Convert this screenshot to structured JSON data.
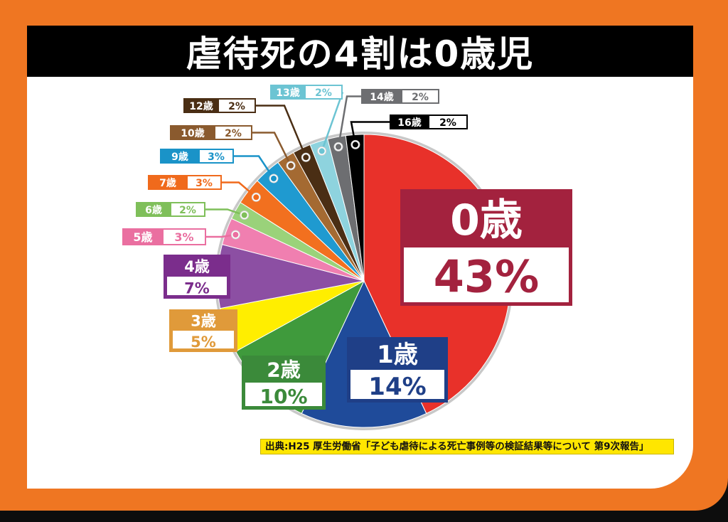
{
  "title": "虐待死の4割は0歳児",
  "source": "出典:H25 厚生労働省「子ども虐待による死亡事例等の検証結果等について 第9次報告」",
  "chart_data": {
    "type": "pie",
    "title": "虐待死の4割は0歳児",
    "start": "12 o'clock",
    "direction": "clockwise",
    "slices": [
      {
        "label": "0歳",
        "value": 43,
        "value_label": "43%",
        "color": "#e8312a",
        "label_color": "#a3223e"
      },
      {
        "label": "1歳",
        "value": 14,
        "value_label": "14%",
        "color": "#1f4b9a",
        "label_color": "#1f3f87"
      },
      {
        "label": "2歳",
        "value": 10,
        "value_label": "10%",
        "color": "#3f9a3c",
        "label_color": "#3b8a3a"
      },
      {
        "label": "3歳",
        "value": 5,
        "value_label": "5%",
        "color": "#ffee00",
        "label_color": "#e09a3a"
      },
      {
        "label": "4歳",
        "value": 7,
        "value_label": "7%",
        "color": "#8c4fa3",
        "label_color": "#7b2d8c"
      },
      {
        "label": "5歳",
        "value": 3,
        "value_label": "3%",
        "color": "#f07fb0",
        "label_color": "#ea6fa0"
      },
      {
        "label": "6歳",
        "value": 2,
        "value_label": "2%",
        "color": "#9ad27a",
        "label_color": "#7fbf5a"
      },
      {
        "label": "7歳",
        "value": 3,
        "value_label": "3%",
        "color": "#f2701f",
        "label_color": "#f06a1c"
      },
      {
        "label": "9歳",
        "value": 3,
        "value_label": "3%",
        "color": "#1f9ad0",
        "label_color": "#1a93c8"
      },
      {
        "label": "10歳",
        "value": 2,
        "value_label": "2%",
        "color": "#a46a32",
        "label_color": "#8a5a2e"
      },
      {
        "label": "12歳",
        "value": 2,
        "value_label": "2%",
        "color": "#4a2e14",
        "label_color": "#4a2e14"
      },
      {
        "label": "13歳",
        "value": 2,
        "value_label": "2%",
        "color": "#8ed3de",
        "label_color": "#6cc4d3"
      },
      {
        "label": "14歳",
        "value": 2,
        "value_label": "2%",
        "color": "#6d6e71",
        "label_color": "#6d6e71"
      },
      {
        "label": "16歳",
        "value": 2,
        "value_label": "2%",
        "color": "#000000",
        "label_color": "#000000"
      }
    ]
  }
}
